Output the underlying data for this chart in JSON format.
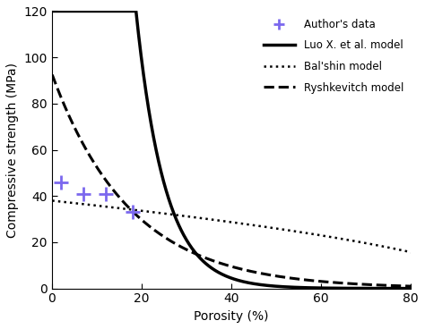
{
  "title": "",
  "xlabel": "Porosity (%)",
  "ylabel": "Compressive strength (MPa)",
  "xlim": [
    0,
    80
  ],
  "ylim": [
    0,
    120
  ],
  "xticks": [
    0,
    20,
    40,
    60,
    80
  ],
  "yticks": [
    0,
    20,
    40,
    60,
    80,
    100,
    120
  ],
  "author_data_x": [
    2,
    7,
    12,
    18
  ],
  "author_data_y": [
    46,
    41,
    41,
    33
  ],
  "author_color": "#7B68EE",
  "luo_sigma0": 2200,
  "luo_b": 0.155,
  "balshin_sigma0": 38,
  "balshin_n": 0.55,
  "ryshkevitch_sigma0": 93,
  "ryshkevitch_b": 0.057,
  "legend_labels": [
    "Author's data",
    "Luo X. et al. model",
    "Bal'shin model",
    "Ryshkevitch model"
  ],
  "legend_loc": "upper right",
  "figsize": [
    4.74,
    3.68
  ],
  "dpi": 100,
  "line_color": "black",
  "background_color": "white"
}
